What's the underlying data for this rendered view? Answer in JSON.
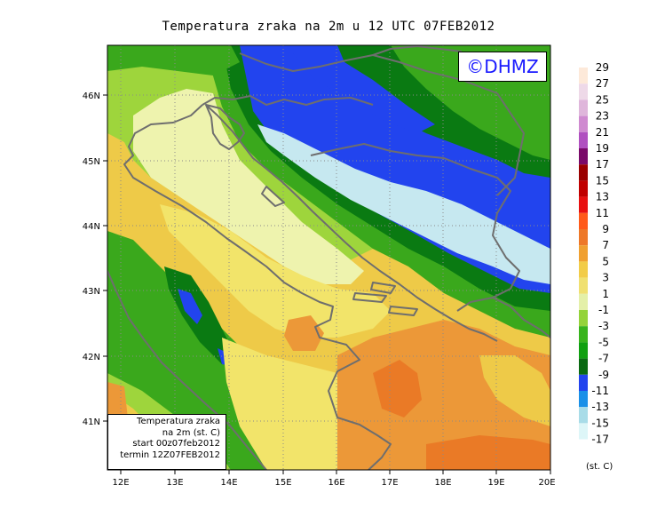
{
  "title": "Temperatura zraka na 2m u 12 UTC 07FEB2012",
  "logo_text": "©DHMZ",
  "info_box": {
    "line1": "Temperatura zraka",
    "line2": "na 2m (st. C)",
    "line3": "start 00z07feb2012",
    "line4": "termin 12Z07FEB2012"
  },
  "lat_ticks": [
    "46N",
    "45N",
    "44N",
    "43N",
    "42N",
    "41N"
  ],
  "lon_ticks": [
    "12E",
    "13E",
    "14E",
    "15E",
    "16E",
    "17E",
    "18E",
    "19E",
    "20E"
  ],
  "colorbar": {
    "unit": "(st. C)",
    "labels": [
      "29",
      "27",
      "25",
      "23",
      "21",
      "19",
      "17",
      "15",
      "13",
      "11",
      "9",
      "7",
      "5",
      "3",
      "1",
      "-1",
      "-3",
      "-5",
      "-7",
      "-9",
      "-11",
      "-13",
      "-15",
      "-17"
    ],
    "colors": [
      "#fde9d9",
      "#eed9e8",
      "#dfb6db",
      "#cf8ad0",
      "#b050c0",
      "#7a0a6a",
      "#9a0000",
      "#c00000",
      "#e81010",
      "#ff5a1a",
      "#ee7828",
      "#f0a030",
      "#f2cc48",
      "#f0e070",
      "#e4f0a8",
      "#94d33a",
      "#38b41c",
      "#10a010",
      "#0a6a12",
      "#2244ee",
      "#1a90e8",
      "#a8dce8",
      "#ddf6f8",
      "#ffffff"
    ]
  },
  "zones": {
    "sea": "#eef3ae",
    "sea_warm": "#f2e46a",
    "land_warm": "#eeca48",
    "land_hot": "#ec9838",
    "hot_core": "#ea7a26",
    "mountain_green": "#3aa81c",
    "mountain_dark": "#0a7a12",
    "cold_blue": "#2244ee",
    "ice": "#c6e8f0",
    "light_green": "#9ed53c"
  }
}
